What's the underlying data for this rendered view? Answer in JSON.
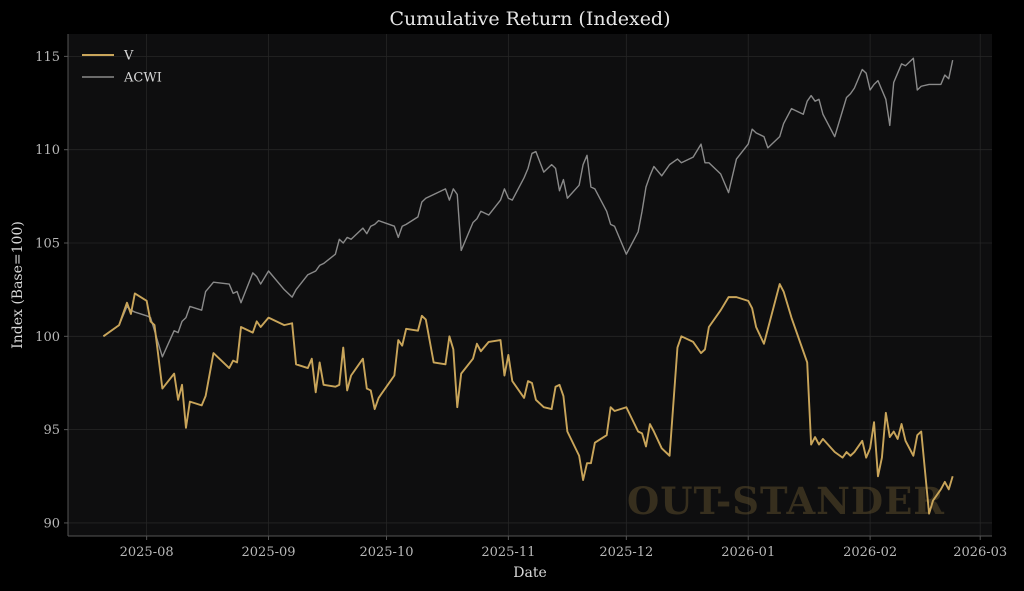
{
  "chart_data": {
    "type": "line",
    "title": "Cumulative Return (Indexed)",
    "xlabel": "Date",
    "ylabel": "Index (Base=100)",
    "x_ticks": [
      "2025-08",
      "2025-09",
      "2025-10",
      "2025-11",
      "2025-12",
      "2026-01",
      "2026-02",
      "2026-03"
    ],
    "y_ticks": [
      90,
      95,
      100,
      105,
      110,
      115
    ],
    "ylim": [
      89.3,
      116.2
    ],
    "xlim": [
      "2025-07-12",
      "2026-03-04"
    ],
    "grid": true,
    "legend_position": "top-left",
    "watermark": "OUT-STANDER",
    "colors": {
      "background": "#000000",
      "plot_bg": "#0e0e0f",
      "grid": "#262626",
      "V": "#c9a55a",
      "ACWI": "#8a8a8a",
      "axis": "#555555"
    },
    "series": [
      {
        "name": "V",
        "points": [
          [
            "2025-07-21",
            100.0
          ],
          [
            "2025-07-25",
            100.6
          ],
          [
            "2025-07-27",
            101.8
          ],
          [
            "2025-07-28",
            101.2
          ],
          [
            "2025-07-29",
            102.3
          ],
          [
            "2025-08-01",
            101.9
          ],
          [
            "2025-08-02",
            100.8
          ],
          [
            "2025-08-03",
            100.6
          ],
          [
            "2025-08-05",
            97.2
          ],
          [
            "2025-08-08",
            98.0
          ],
          [
            "2025-08-09",
            96.6
          ],
          [
            "2025-08-10",
            97.4
          ],
          [
            "2025-08-11",
            95.1
          ],
          [
            "2025-08-12",
            96.5
          ],
          [
            "2025-08-15",
            96.3
          ],
          [
            "2025-08-16",
            96.8
          ],
          [
            "2025-08-18",
            99.1
          ],
          [
            "2025-08-22",
            98.3
          ],
          [
            "2025-08-23",
            98.7
          ],
          [
            "2025-08-24",
            98.6
          ],
          [
            "2025-08-25",
            100.5
          ],
          [
            "2025-08-28",
            100.2
          ],
          [
            "2025-08-29",
            100.8
          ],
          [
            "2025-08-30",
            100.5
          ],
          [
            "2025-09-01",
            101.0
          ],
          [
            "2025-09-05",
            100.6
          ],
          [
            "2025-09-07",
            100.7
          ],
          [
            "2025-09-08",
            98.5
          ],
          [
            "2025-09-11",
            98.3
          ],
          [
            "2025-09-12",
            98.8
          ],
          [
            "2025-09-13",
            97.0
          ],
          [
            "2025-09-14",
            98.6
          ],
          [
            "2025-09-15",
            97.4
          ],
          [
            "2025-09-18",
            97.3
          ],
          [
            "2025-09-19",
            97.4
          ],
          [
            "2025-09-20",
            99.4
          ],
          [
            "2025-09-21",
            97.1
          ],
          [
            "2025-09-22",
            97.9
          ],
          [
            "2025-09-25",
            98.8
          ],
          [
            "2025-09-26",
            97.2
          ],
          [
            "2025-09-27",
            97.1
          ],
          [
            "2025-09-28",
            96.1
          ],
          [
            "2025-09-29",
            96.7
          ],
          [
            "2025-10-03",
            97.9
          ],
          [
            "2025-10-04",
            99.8
          ],
          [
            "2025-10-05",
            99.5
          ],
          [
            "2025-10-06",
            100.4
          ],
          [
            "2025-10-09",
            100.3
          ],
          [
            "2025-10-10",
            101.1
          ],
          [
            "2025-10-11",
            100.9
          ],
          [
            "2025-10-13",
            98.6
          ],
          [
            "2025-10-16",
            98.5
          ],
          [
            "2025-10-17",
            100.0
          ],
          [
            "2025-10-18",
            99.3
          ],
          [
            "2025-10-19",
            96.2
          ],
          [
            "2025-10-20",
            98.0
          ],
          [
            "2025-10-23",
            98.8
          ],
          [
            "2025-10-24",
            99.6
          ],
          [
            "2025-10-25",
            99.2
          ],
          [
            "2025-10-27",
            99.7
          ],
          [
            "2025-10-30",
            99.8
          ],
          [
            "2025-10-31",
            97.9
          ],
          [
            "2025-11-01",
            99.0
          ],
          [
            "2025-11-02",
            97.6
          ],
          [
            "2025-11-05",
            96.7
          ],
          [
            "2025-11-06",
            97.6
          ],
          [
            "2025-11-07",
            97.5
          ],
          [
            "2025-11-08",
            96.6
          ],
          [
            "2025-11-10",
            96.2
          ],
          [
            "2025-11-12",
            96.1
          ],
          [
            "2025-11-13",
            97.3
          ],
          [
            "2025-11-14",
            97.4
          ],
          [
            "2025-11-15",
            96.8
          ],
          [
            "2025-11-16",
            94.9
          ],
          [
            "2025-11-19",
            93.6
          ],
          [
            "2025-11-20",
            92.3
          ],
          [
            "2025-11-21",
            93.2
          ],
          [
            "2025-11-22",
            93.2
          ],
          [
            "2025-11-23",
            94.3
          ],
          [
            "2025-11-26",
            94.7
          ],
          [
            "2025-11-27",
            96.2
          ],
          [
            "2025-11-28",
            96.0
          ],
          [
            "2025-12-01",
            96.2
          ],
          [
            "2025-12-04",
            94.9
          ],
          [
            "2025-12-05",
            94.8
          ],
          [
            "2025-12-06",
            94.1
          ],
          [
            "2025-12-07",
            95.3
          ],
          [
            "2025-12-08",
            94.9
          ],
          [
            "2025-12-10",
            94.0
          ],
          [
            "2025-12-12",
            93.6
          ],
          [
            "2025-12-14",
            99.4
          ],
          [
            "2025-12-15",
            100.0
          ],
          [
            "2025-12-18",
            99.7
          ],
          [
            "2025-12-20",
            99.1
          ],
          [
            "2025-12-21",
            99.3
          ],
          [
            "2025-12-22",
            100.5
          ],
          [
            "2025-12-25",
            101.4
          ],
          [
            "2025-12-27",
            102.1
          ],
          [
            "2025-12-29",
            102.1
          ],
          [
            "2026-01-01",
            101.9
          ],
          [
            "2026-01-02",
            101.5
          ],
          [
            "2026-01-03",
            100.5
          ],
          [
            "2026-01-05",
            99.6
          ],
          [
            "2026-01-06",
            100.4
          ],
          [
            "2026-01-09",
            102.8
          ],
          [
            "2026-01-10",
            102.4
          ],
          [
            "2026-01-12",
            101.0
          ],
          [
            "2026-01-15",
            99.2
          ],
          [
            "2026-01-16",
            98.6
          ],
          [
            "2026-01-17",
            94.2
          ],
          [
            "2026-01-18",
            94.6
          ],
          [
            "2026-01-19",
            94.2
          ],
          [
            "2026-01-20",
            94.5
          ],
          [
            "2026-01-23",
            93.8
          ],
          [
            "2026-01-25",
            93.5
          ],
          [
            "2026-01-26",
            93.8
          ],
          [
            "2026-01-27",
            93.6
          ],
          [
            "2026-01-28",
            93.8
          ],
          [
            "2026-01-30",
            94.4
          ],
          [
            "2026-01-31",
            93.5
          ],
          [
            "2026-02-01",
            94.0
          ],
          [
            "2026-02-02",
            95.4
          ],
          [
            "2026-02-03",
            92.5
          ],
          [
            "2026-02-04",
            93.5
          ],
          [
            "2026-02-05",
            95.9
          ],
          [
            "2026-02-06",
            94.6
          ],
          [
            "2026-02-07",
            94.9
          ],
          [
            "2026-02-08",
            94.5
          ],
          [
            "2026-02-09",
            95.3
          ],
          [
            "2026-02-10",
            94.4
          ],
          [
            "2026-02-12",
            93.6
          ],
          [
            "2026-02-13",
            94.7
          ],
          [
            "2026-02-14",
            94.9
          ],
          [
            "2026-02-16",
            90.5
          ],
          [
            "2026-02-17",
            91.2
          ],
          [
            "2026-02-19",
            91.8
          ],
          [
            "2026-02-20",
            92.2
          ],
          [
            "2026-02-21",
            91.8
          ],
          [
            "2026-02-22",
            92.5
          ]
        ]
      },
      {
        "name": "ACWI",
        "points": [
          [
            "2025-07-21",
            100.0
          ],
          [
            "2025-07-25",
            100.6
          ],
          [
            "2025-07-27",
            101.6
          ],
          [
            "2025-07-28",
            101.4
          ],
          [
            "2025-07-29",
            101.3
          ],
          [
            "2025-08-01",
            101.1
          ],
          [
            "2025-08-02",
            101.0
          ],
          [
            "2025-08-03",
            100.3
          ],
          [
            "2025-08-05",
            98.9
          ],
          [
            "2025-08-08",
            100.3
          ],
          [
            "2025-08-09",
            100.2
          ],
          [
            "2025-08-10",
            100.8
          ],
          [
            "2025-08-11",
            101.0
          ],
          [
            "2025-08-12",
            101.6
          ],
          [
            "2025-08-15",
            101.4
          ],
          [
            "2025-08-16",
            102.4
          ],
          [
            "2025-08-18",
            102.9
          ],
          [
            "2025-08-22",
            102.8
          ],
          [
            "2025-08-23",
            102.3
          ],
          [
            "2025-08-24",
            102.4
          ],
          [
            "2025-08-25",
            101.8
          ],
          [
            "2025-08-28",
            103.4
          ],
          [
            "2025-08-29",
            103.2
          ],
          [
            "2025-08-30",
            102.8
          ],
          [
            "2025-09-01",
            103.5
          ],
          [
            "2025-09-05",
            102.5
          ],
          [
            "2025-09-07",
            102.1
          ],
          [
            "2025-09-08",
            102.5
          ],
          [
            "2025-09-11",
            103.3
          ],
          [
            "2025-09-12",
            103.4
          ],
          [
            "2025-09-13",
            103.5
          ],
          [
            "2025-09-14",
            103.8
          ],
          [
            "2025-09-15",
            103.9
          ],
          [
            "2025-09-18",
            104.4
          ],
          [
            "2025-09-19",
            105.2
          ],
          [
            "2025-09-20",
            105.0
          ],
          [
            "2025-09-21",
            105.3
          ],
          [
            "2025-09-22",
            105.2
          ],
          [
            "2025-09-25",
            105.8
          ],
          [
            "2025-09-26",
            105.5
          ],
          [
            "2025-09-27",
            105.9
          ],
          [
            "2025-09-28",
            106.0
          ],
          [
            "2025-09-29",
            106.2
          ],
          [
            "2025-10-03",
            105.9
          ],
          [
            "2025-10-04",
            105.3
          ],
          [
            "2025-10-05",
            105.9
          ],
          [
            "2025-10-06",
            106.0
          ],
          [
            "2025-10-09",
            106.4
          ],
          [
            "2025-10-10",
            107.2
          ],
          [
            "2025-10-11",
            107.4
          ],
          [
            "2025-10-13",
            107.6
          ],
          [
            "2025-10-16",
            107.9
          ],
          [
            "2025-10-17",
            107.3
          ],
          [
            "2025-10-18",
            107.9
          ],
          [
            "2025-10-19",
            107.6
          ],
          [
            "2025-10-20",
            104.6
          ],
          [
            "2025-10-23",
            106.1
          ],
          [
            "2025-10-24",
            106.3
          ],
          [
            "2025-10-25",
            106.7
          ],
          [
            "2025-10-27",
            106.5
          ],
          [
            "2025-10-30",
            107.3
          ],
          [
            "2025-10-31",
            107.9
          ],
          [
            "2025-11-01",
            107.4
          ],
          [
            "2025-11-02",
            107.3
          ],
          [
            "2025-11-05",
            108.5
          ],
          [
            "2025-11-06",
            109.0
          ],
          [
            "2025-11-07",
            109.8
          ],
          [
            "2025-11-08",
            109.9
          ],
          [
            "2025-11-10",
            108.8
          ],
          [
            "2025-11-12",
            109.2
          ],
          [
            "2025-11-13",
            109.0
          ],
          [
            "2025-11-14",
            107.8
          ],
          [
            "2025-11-15",
            108.4
          ],
          [
            "2025-11-16",
            107.4
          ],
          [
            "2025-11-19",
            108.1
          ],
          [
            "2025-11-20",
            109.2
          ],
          [
            "2025-11-21",
            109.7
          ],
          [
            "2025-11-22",
            108.0
          ],
          [
            "2025-11-23",
            107.9
          ],
          [
            "2025-11-26",
            106.7
          ],
          [
            "2025-11-27",
            106.0
          ],
          [
            "2025-11-28",
            105.9
          ],
          [
            "2025-12-01",
            104.4
          ],
          [
            "2025-12-04",
            105.6
          ],
          [
            "2025-12-05",
            106.7
          ],
          [
            "2025-12-06",
            108.0
          ],
          [
            "2025-12-07",
            108.6
          ],
          [
            "2025-12-08",
            109.1
          ],
          [
            "2025-12-10",
            108.6
          ],
          [
            "2025-12-12",
            109.2
          ],
          [
            "2025-12-14",
            109.5
          ],
          [
            "2025-12-15",
            109.3
          ],
          [
            "2025-12-18",
            109.6
          ],
          [
            "2025-12-20",
            110.3
          ],
          [
            "2025-12-21",
            109.3
          ],
          [
            "2025-12-22",
            109.3
          ],
          [
            "2025-12-25",
            108.7
          ],
          [
            "2025-12-27",
            107.7
          ],
          [
            "2025-12-29",
            109.5
          ],
          [
            "2026-01-01",
            110.3
          ],
          [
            "2026-01-02",
            111.1
          ],
          [
            "2026-01-03",
            110.9
          ],
          [
            "2026-01-05",
            110.7
          ],
          [
            "2026-01-06",
            110.1
          ],
          [
            "2026-01-09",
            110.7
          ],
          [
            "2026-01-10",
            111.4
          ],
          [
            "2026-01-12",
            112.2
          ],
          [
            "2026-01-15",
            111.9
          ],
          [
            "2026-01-16",
            112.6
          ],
          [
            "2026-01-17",
            112.9
          ],
          [
            "2026-01-18",
            112.6
          ],
          [
            "2026-01-19",
            112.7
          ],
          [
            "2026-01-20",
            111.9
          ],
          [
            "2026-01-23",
            110.7
          ],
          [
            "2026-01-25",
            112.1
          ],
          [
            "2026-01-26",
            112.8
          ],
          [
            "2026-01-27",
            113.0
          ],
          [
            "2026-01-28",
            113.3
          ],
          [
            "2026-01-30",
            114.3
          ],
          [
            "2026-01-31",
            114.1
          ],
          [
            "2026-02-01",
            113.2
          ],
          [
            "2026-02-02",
            113.5
          ],
          [
            "2026-02-03",
            113.7
          ],
          [
            "2026-02-04",
            113.2
          ],
          [
            "2026-02-05",
            112.7
          ],
          [
            "2026-02-06",
            111.3
          ],
          [
            "2026-02-07",
            113.6
          ],
          [
            "2026-02-08",
            114.1
          ],
          [
            "2026-02-09",
            114.6
          ],
          [
            "2026-02-10",
            114.5
          ],
          [
            "2026-02-12",
            114.9
          ],
          [
            "2026-02-13",
            113.2
          ],
          [
            "2026-02-14",
            113.4
          ],
          [
            "2026-02-16",
            113.5
          ],
          [
            "2026-02-17",
            113.5
          ],
          [
            "2026-02-19",
            113.5
          ],
          [
            "2026-02-20",
            114.0
          ],
          [
            "2026-02-21",
            113.8
          ],
          [
            "2026-02-22",
            114.8
          ]
        ]
      }
    ]
  }
}
